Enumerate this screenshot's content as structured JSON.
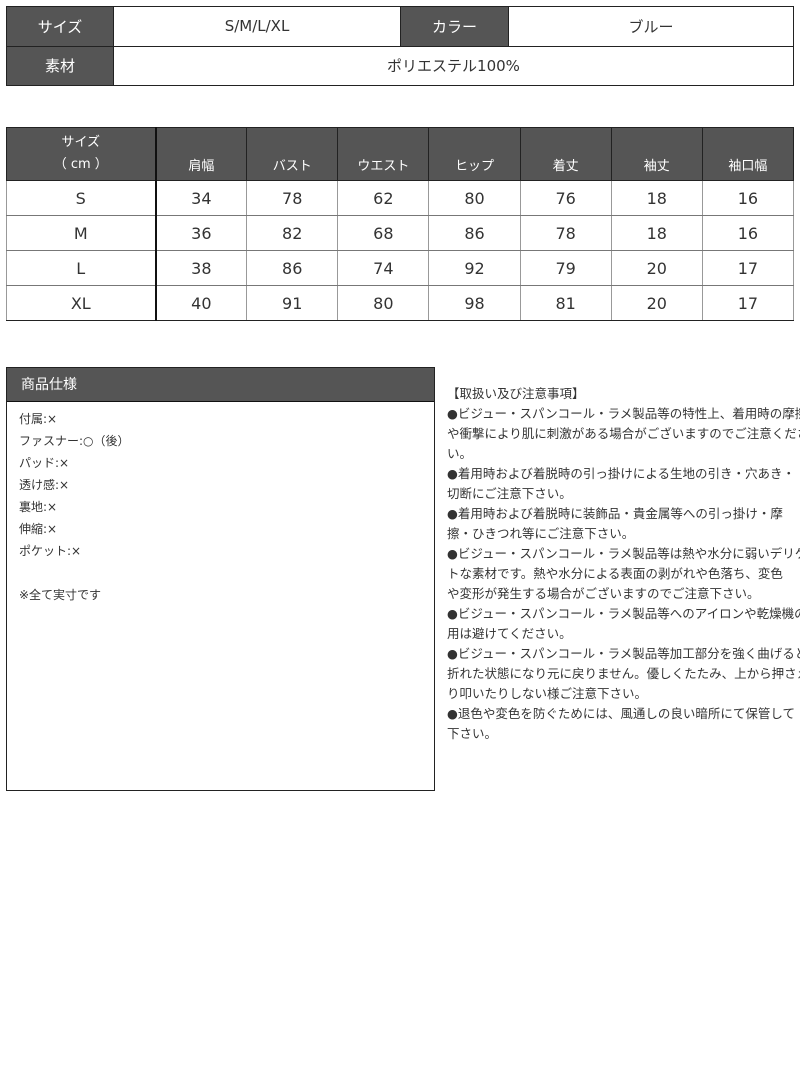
{
  "summary": {
    "size_label": "サイズ",
    "size_value": "S/M/L/XL",
    "color_label": "カラー",
    "color_value": "ブルー",
    "material_label": "素材",
    "material_value": "ポリエステル100%"
  },
  "size_table": {
    "header_first": [
      "サイズ",
      "（ cm ）"
    ],
    "columns": [
      "肩幅",
      "バスト",
      "ウエスト",
      "ヒップ",
      "着丈",
      "袖丈",
      "袖口幅"
    ],
    "rows": [
      {
        "size": "S",
        "values": [
          "34",
          "78",
          "62",
          "80",
          "76",
          "18",
          "16"
        ]
      },
      {
        "size": "M",
        "values": [
          "36",
          "82",
          "68",
          "86",
          "78",
          "18",
          "16"
        ]
      },
      {
        "size": "L",
        "values": [
          "38",
          "86",
          "74",
          "92",
          "79",
          "20",
          "17"
        ]
      },
      {
        "size": "XL",
        "values": [
          "40",
          "91",
          "80",
          "98",
          "81",
          "20",
          "17"
        ]
      }
    ]
  },
  "spec": {
    "title": "商品仕様",
    "items": [
      "付属:×",
      "ファスナー:○（後）",
      "パッド:×",
      "透け感:×",
      "裏地:×",
      "伸縮:×",
      "ポケット:×",
      "",
      "※全て実寸です"
    ]
  },
  "notes": {
    "lines": [
      "【取扱い及び注意事項】",
      "●ビジュー・スパンコール・ラメ製品等の特性上、着用時の摩擦",
      "や衝撃により肌に刺激がある場合がございますのでご注意くださ",
      "い。",
      "●着用時および着脱時の引っ掛けによる生地の引き・穴あき・",
      "切断にご注意下さい。",
      "●着用時および着脱時に装飾品・貴金属等への引っ掛け・摩",
      "擦・ひきつれ等にご注意下さい。",
      "●ビジュー・スパンコール・ラメ製品等は熱や水分に弱いデリケー",
      "トな素材です。熱や水分による表面の剥がれや色落ち、変色",
      "や変形が発生する場合がございますのでご注意下さい。",
      "●ビジュー・スパンコール・ラメ製品等へのアイロンや乾燥機の使",
      "用は避けてください。",
      "●ビジュー・スパンコール・ラメ製品等加工部分を強く曲げると",
      "折れた状態になり元に戻りません。優しくたたみ、上から押さえた",
      "り叩いたりしない様ご注意下さい。",
      "●退色や変色を防ぐためには、風通しの良い暗所にて保管して",
      "下さい。"
    ]
  }
}
